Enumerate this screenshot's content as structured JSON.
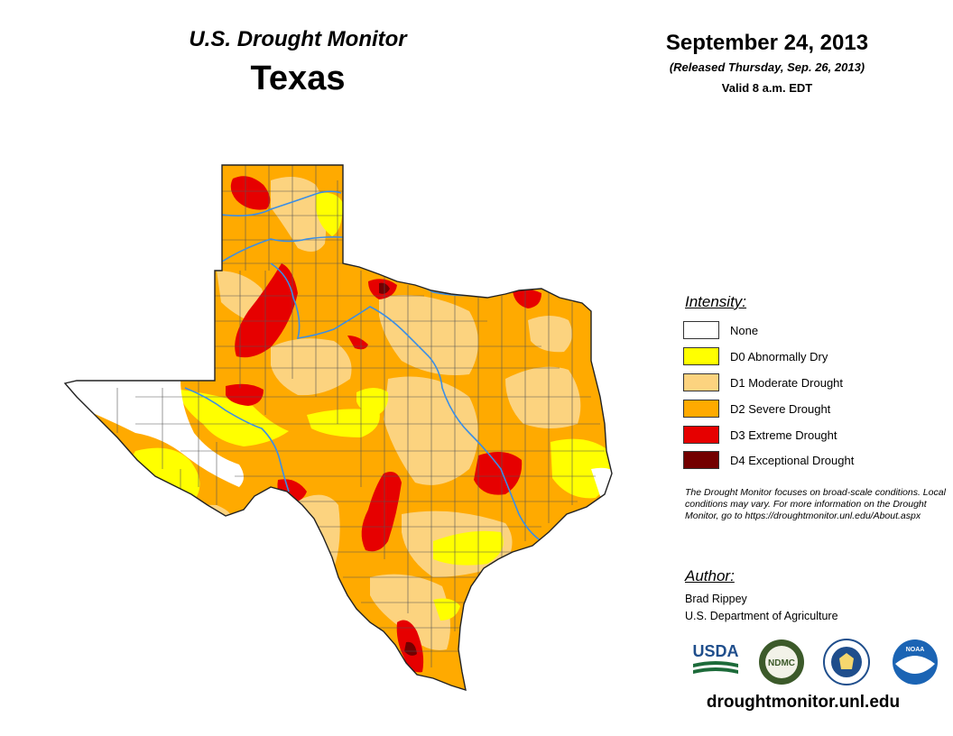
{
  "header": {
    "monitor_title": "U.S. Drought Monitor",
    "state": "Texas",
    "date": "September 24, 2013",
    "released": "(Released Thursday, Sep. 26, 2013)",
    "valid": "Valid 8 a.m. EDT"
  },
  "legend": {
    "title": "Intensity:",
    "items": [
      {
        "label": "None",
        "color": "#ffffff"
      },
      {
        "label": "D0 Abnormally Dry",
        "color": "#ffff00"
      },
      {
        "label": "D1 Moderate Drought",
        "color": "#fcd37f"
      },
      {
        "label": "D2 Severe Drought",
        "color": "#ffaa00"
      },
      {
        "label": "D3 Extreme Drought",
        "color": "#e60000"
      },
      {
        "label": "D4 Exceptional Drought",
        "color": "#730000"
      }
    ]
  },
  "note": "The Drought Monitor focuses on broad-scale conditions. Local conditions may vary. For more information on the Drought Monitor, go to https://droughtmonitor.unl.edu/About.aspx",
  "author": {
    "title": "Author:",
    "name": "Brad Rippey",
    "org": "U.S. Department of Agriculture"
  },
  "logos": {
    "usda": "USDA",
    "ndmc": "NDMC",
    "noaa": "NOAA"
  },
  "colors": {
    "river": "#3a8ee6",
    "county_line": "#555555",
    "usda_green": "#1d6b3a",
    "usda_blue": "#1f4e8c",
    "ndmc_green": "#3c5a2a",
    "noaa_blue": "#1b64b4"
  },
  "footer_url": "droughtmonitor.unl.edu"
}
